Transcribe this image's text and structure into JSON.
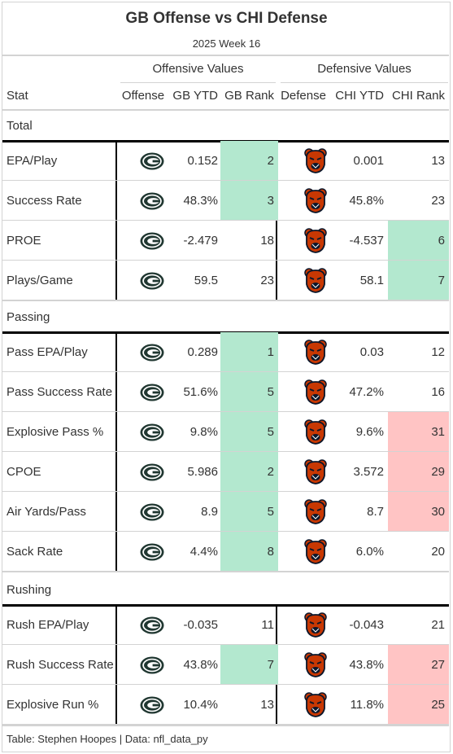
{
  "title": "GB Offense vs CHI Defense",
  "subtitle": "2025 Week 16",
  "spanners": {
    "offense": "Offensive Values",
    "defense": "Defensive Values"
  },
  "columns": {
    "stat": "Stat",
    "offense": "Offense",
    "gb_ytd": "GB YTD",
    "gb_rank": "GB Rank",
    "defense": "Defense",
    "chi_ytd": "CHI YTD",
    "chi_rank": "CHI Rank"
  },
  "footer": "Table: Stephen Hoopes | Data: nfl_data_py",
  "colors": {
    "good": "#b3e8cf",
    "bad": "#ffc4c4",
    "packers_green": "#203731",
    "packers_gold": "#ffb612",
    "bears_orange": "#c83803",
    "bears_navy": "#0b162a"
  },
  "icons": {
    "offense": "packers-g-logo-icon",
    "defense": "bears-head-logo-icon"
  },
  "chart_data": {
    "type": "table",
    "groups": [
      {
        "name": "Total",
        "rows": [
          {
            "stat": "EPA/Play",
            "gb_ytd": "0.152",
            "gb_rank": 2,
            "chi_ytd": "0.001",
            "chi_rank": 13,
            "gb_fill": "good",
            "chi_fill": ""
          },
          {
            "stat": "Success Rate",
            "gb_ytd": "48.3%",
            "gb_rank": 3,
            "chi_ytd": "45.8%",
            "chi_rank": 23,
            "gb_fill": "good",
            "chi_fill": ""
          },
          {
            "stat": "PROE",
            "gb_ytd": "-2.479",
            "gb_rank": 18,
            "chi_ytd": "-4.537",
            "chi_rank": 6,
            "gb_fill": "",
            "chi_fill": "good"
          },
          {
            "stat": "Plays/Game",
            "gb_ytd": "59.5",
            "gb_rank": 23,
            "chi_ytd": "58.1",
            "chi_rank": 7,
            "gb_fill": "",
            "chi_fill": "good"
          }
        ]
      },
      {
        "name": "Passing",
        "rows": [
          {
            "stat": "Pass EPA/Play",
            "gb_ytd": "0.289",
            "gb_rank": 1,
            "chi_ytd": "0.03",
            "chi_rank": 12,
            "gb_fill": "good",
            "chi_fill": ""
          },
          {
            "stat": "Pass Success Rate",
            "gb_ytd": "51.6%",
            "gb_rank": 5,
            "chi_ytd": "47.2%",
            "chi_rank": 16,
            "gb_fill": "good",
            "chi_fill": ""
          },
          {
            "stat": "Explosive Pass %",
            "gb_ytd": "9.8%",
            "gb_rank": 5,
            "chi_ytd": "9.6%",
            "chi_rank": 31,
            "gb_fill": "good",
            "chi_fill": "bad"
          },
          {
            "stat": "CPOE",
            "gb_ytd": "5.986",
            "gb_rank": 2,
            "chi_ytd": "3.572",
            "chi_rank": 29,
            "gb_fill": "good",
            "chi_fill": "bad"
          },
          {
            "stat": "Air Yards/Pass",
            "gb_ytd": "8.9",
            "gb_rank": 5,
            "chi_ytd": "8.7",
            "chi_rank": 30,
            "gb_fill": "good",
            "chi_fill": "bad"
          },
          {
            "stat": "Sack Rate",
            "gb_ytd": "4.4%",
            "gb_rank": 8,
            "chi_ytd": "6.0%",
            "chi_rank": 20,
            "gb_fill": "good",
            "chi_fill": ""
          }
        ]
      },
      {
        "name": "Rushing",
        "rows": [
          {
            "stat": "Rush EPA/Play",
            "gb_ytd": "-0.035",
            "gb_rank": 11,
            "chi_ytd": "-0.043",
            "chi_rank": 21,
            "gb_fill": "",
            "chi_fill": ""
          },
          {
            "stat": "Rush Success Rate",
            "gb_ytd": "43.8%",
            "gb_rank": 7,
            "chi_ytd": "43.8%",
            "chi_rank": 27,
            "gb_fill": "good",
            "chi_fill": "bad"
          },
          {
            "stat": "Explosive Run %",
            "gb_ytd": "10.4%",
            "gb_rank": 13,
            "chi_ytd": "11.8%",
            "chi_rank": 25,
            "gb_fill": "",
            "chi_fill": "bad"
          }
        ]
      }
    ]
  }
}
